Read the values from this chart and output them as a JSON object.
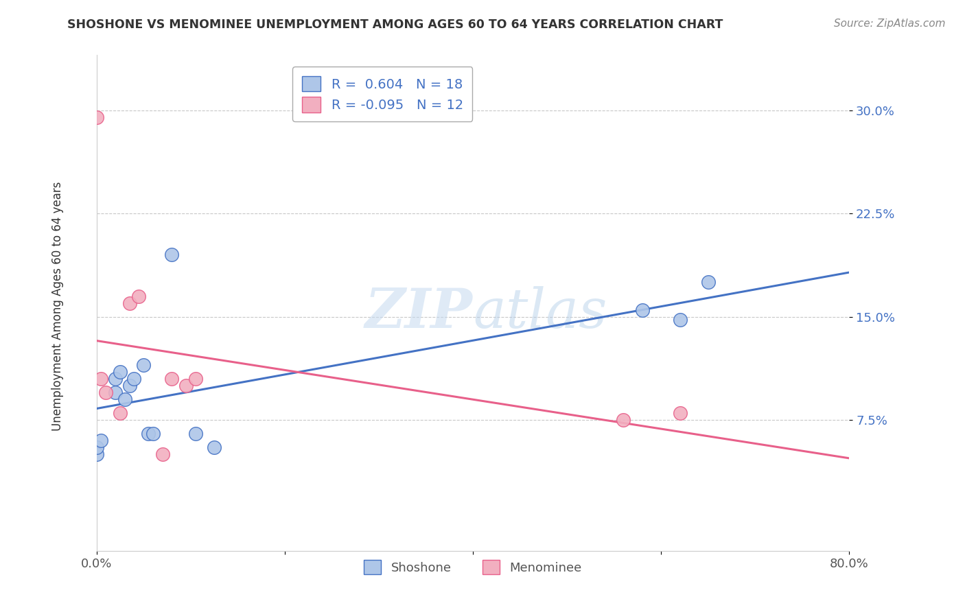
{
  "title": "SHOSHONE VS MENOMINEE UNEMPLOYMENT AMONG AGES 60 TO 64 YEARS CORRELATION CHART",
  "source": "Source: ZipAtlas.com",
  "ylabel": "Unemployment Among Ages 60 to 64 years",
  "xlim": [
    0.0,
    0.8
  ],
  "ylim": [
    -0.02,
    0.34
  ],
  "yticks": [
    0.075,
    0.15,
    0.225,
    0.3
  ],
  "ytick_labels": [
    "7.5%",
    "15.0%",
    "22.5%",
    "30.0%"
  ],
  "xticks": [
    0.0,
    0.2,
    0.4,
    0.6,
    0.8
  ],
  "xtick_labels": [
    "0.0%",
    "",
    "",
    "",
    "80.0%"
  ],
  "shoshone_color": "#aec6e8",
  "menominee_color": "#f2afc0",
  "shoshone_line_color": "#4472c4",
  "menominee_line_color": "#e8608a",
  "shoshone_R": 0.604,
  "shoshone_N": 18,
  "menominee_R": -0.095,
  "menominee_N": 12,
  "shoshone_x": [
    0.0,
    0.0,
    0.005,
    0.02,
    0.02,
    0.025,
    0.03,
    0.035,
    0.04,
    0.05,
    0.055,
    0.06,
    0.08,
    0.105,
    0.125,
    0.58,
    0.62,
    0.65
  ],
  "shoshone_y": [
    0.05,
    0.055,
    0.06,
    0.095,
    0.105,
    0.11,
    0.09,
    0.1,
    0.105,
    0.115,
    0.065,
    0.065,
    0.195,
    0.065,
    0.055,
    0.155,
    0.148,
    0.175
  ],
  "menominee_x": [
    0.0,
    0.005,
    0.01,
    0.025,
    0.035,
    0.045,
    0.07,
    0.08,
    0.095,
    0.105,
    0.56,
    0.62
  ],
  "menominee_y": [
    0.295,
    0.105,
    0.095,
    0.08,
    0.16,
    0.165,
    0.05,
    0.105,
    0.1,
    0.105,
    0.075,
    0.08
  ],
  "watermark_zip": "ZIP",
  "watermark_atlas": "atlas",
  "background_color": "#ffffff",
  "grid_color": "#c8c8c8",
  "legend_text_color": "#4472c4"
}
